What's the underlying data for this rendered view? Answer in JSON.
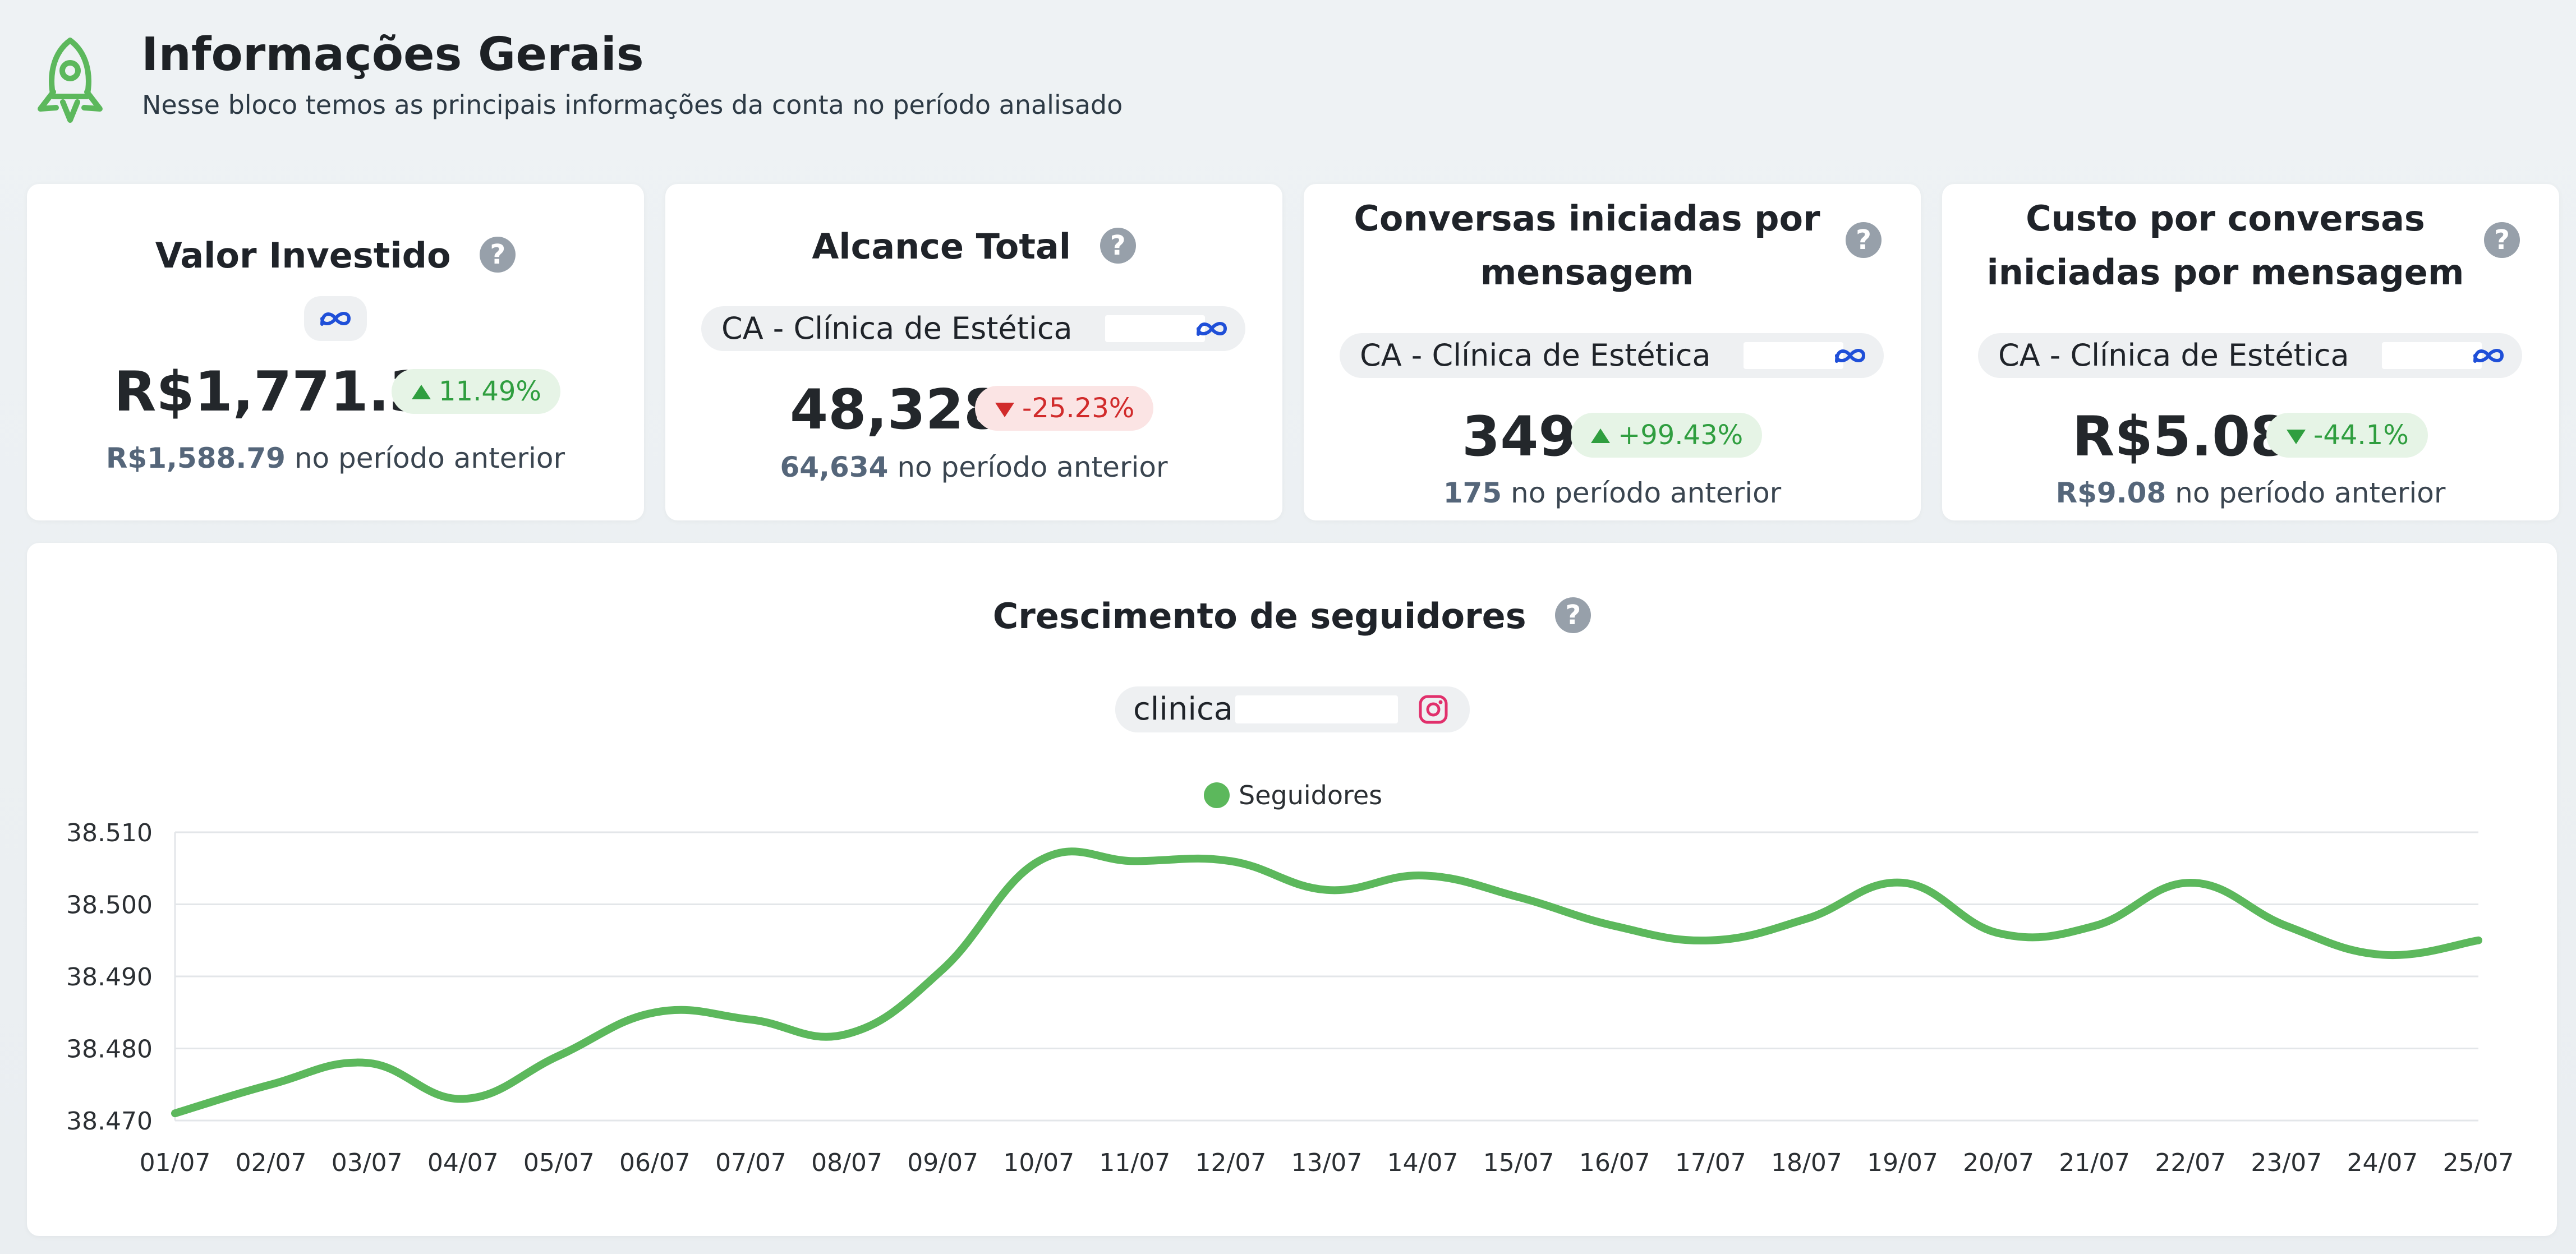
{
  "header": {
    "title": "Informações Gerais",
    "subtitle": "Nesse bloco temos as principais informações da conta no período analisado",
    "icon": "rocket-icon"
  },
  "colors": {
    "accent_green": "#5cb85c",
    "positive": "#2f9e3f",
    "negative": "#d12b2b",
    "meta_blue": "#1f4fd8",
    "instagram_pink": "#e1306c"
  },
  "cards": [
    {
      "title": "Valor Investido",
      "value": "R$1,771.34",
      "change": "11.49%",
      "trend": "up",
      "previous_value": "R$1,588.79",
      "previous_label": "no período anterior"
    },
    {
      "title": "Alcance Total",
      "source": "CA - Clínica de Estética",
      "value": "48,328",
      "change": "-25.23%",
      "trend": "down",
      "previous_value": "64,634",
      "previous_label": "no período anterior"
    },
    {
      "title_line1": "Conversas iniciadas por",
      "title_line2": "mensagem",
      "source": "CA - Clínica de Estética",
      "value": "349",
      "change": "+99.43%",
      "trend": "up",
      "previous_value": "175",
      "previous_label": "no período anterior"
    },
    {
      "title_line1": "Custo por conversas",
      "title_line2": "iniciadas por mensagem",
      "source": "CA - Clínica de Estética",
      "value": "R$5.08",
      "change": "-44.1%",
      "trend": "down-good",
      "previous_value": "R$9.08",
      "previous_label": "no período anterior"
    }
  ],
  "chart": {
    "title": "Crescimento de seguidores",
    "account": "clinica"
  },
  "chart_data": {
    "type": "line",
    "title": "Crescimento de seguidores",
    "x": [
      "01/07",
      "02/07",
      "03/07",
      "04/07",
      "05/07",
      "06/07",
      "07/07",
      "08/07",
      "09/07",
      "10/07",
      "11/07",
      "12/07",
      "13/07",
      "14/07",
      "15/07",
      "16/07",
      "17/07",
      "18/07",
      "19/07",
      "20/07",
      "21/07",
      "22/07",
      "23/07",
      "24/07",
      "25/07"
    ],
    "series": [
      {
        "name": "Seguidores",
        "values": [
          38471,
          38475,
          38478,
          38473,
          38479,
          38485,
          38484,
          38482,
          38491,
          38506,
          38506,
          38506,
          38502,
          38504,
          38501,
          38497,
          38495,
          38498,
          38503,
          38496,
          38497,
          38503,
          38497,
          38493,
          38495
        ]
      }
    ],
    "y_ticks": [
      "38.470",
      "38.480",
      "38.490",
      "38.500",
      "38.510"
    ],
    "ylim": [
      38470,
      38510
    ],
    "grid": true,
    "legend": "top-center"
  }
}
